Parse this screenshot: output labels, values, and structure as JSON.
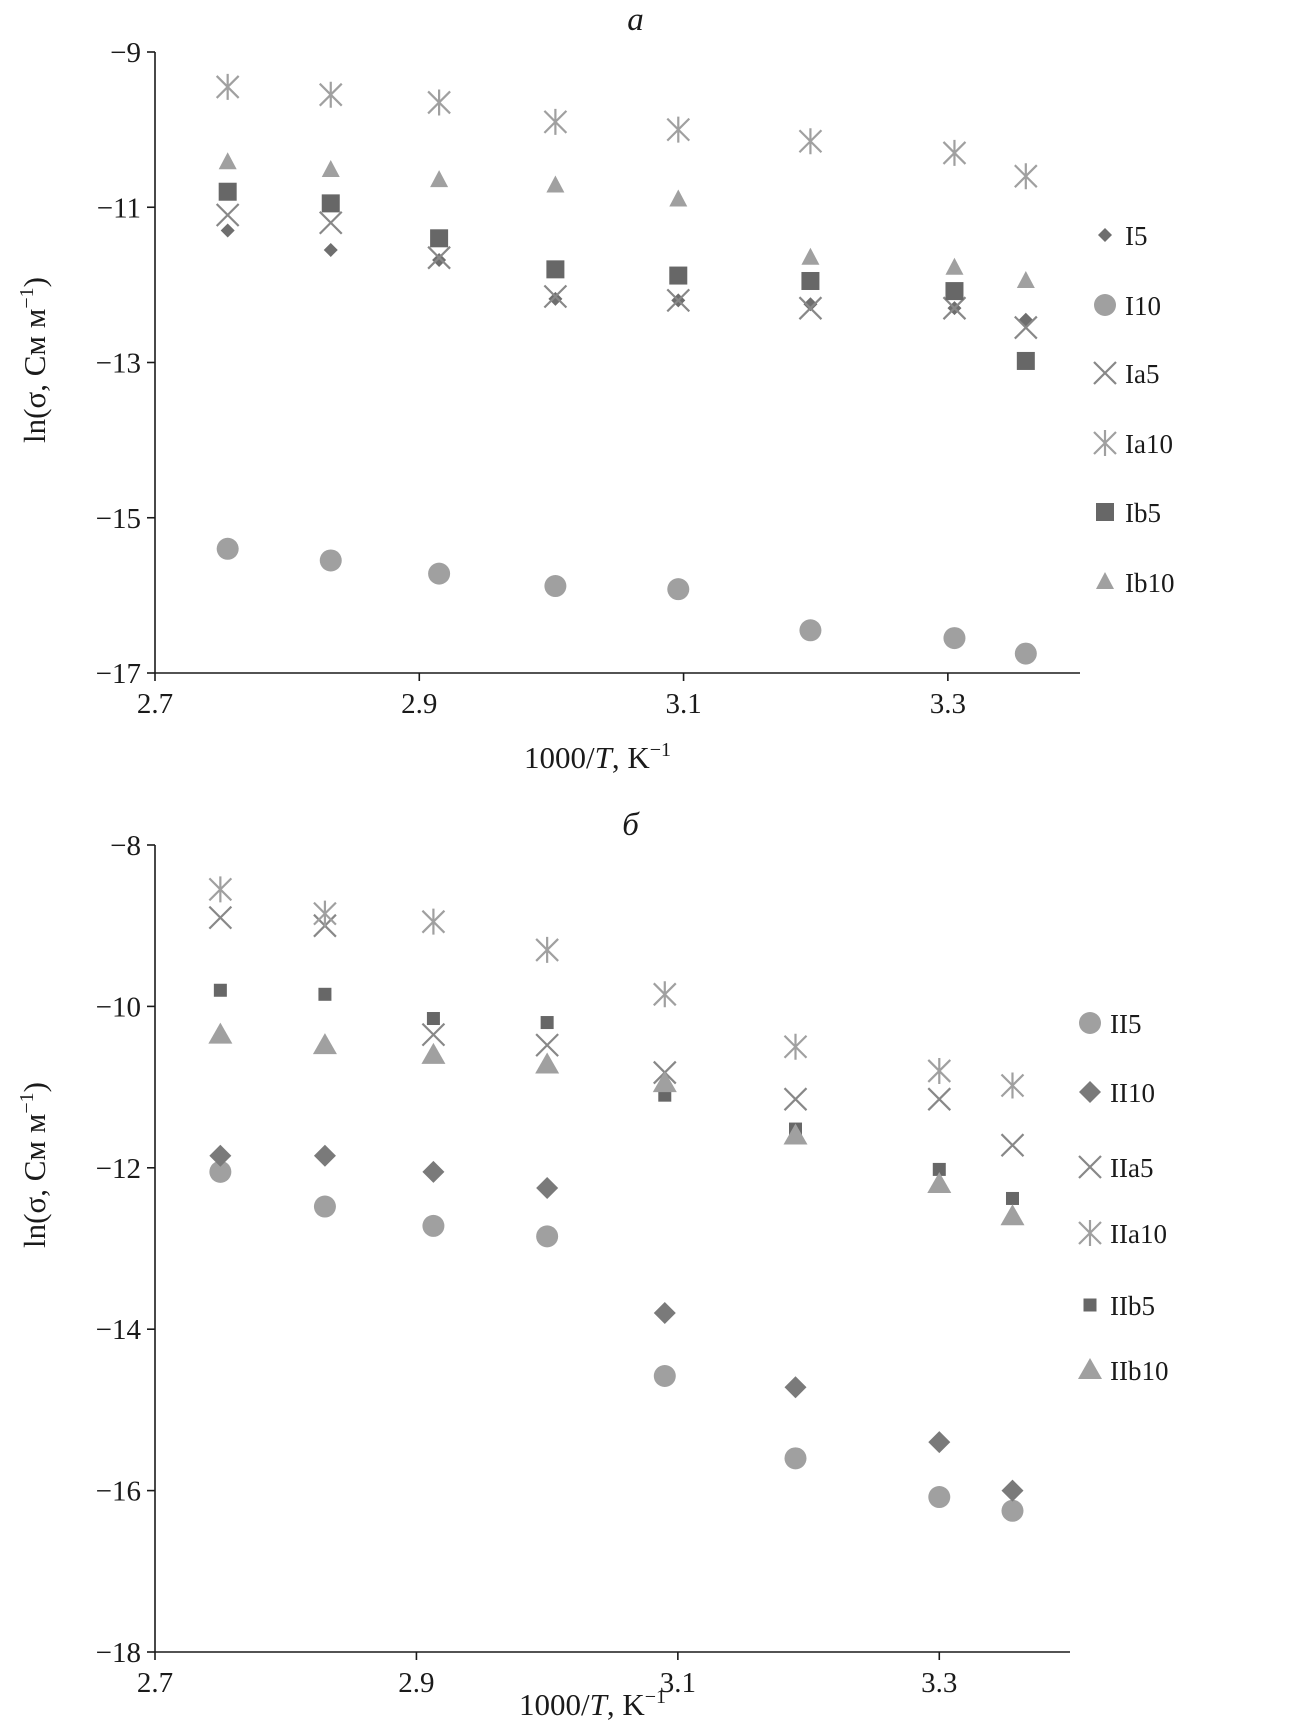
{
  "chart_data": [
    {
      "type": "scatter",
      "panel_label": "a",
      "xlabel_main": "1000/",
      "xlabel_var": "T",
      "xlabel_unit": ", K",
      "xlabel_sup": "−1",
      "ylabel_main": "ln(σ, Cм м",
      "ylabel_sup": "−1",
      "ylabel_end": ")",
      "xlim": [
        2.7,
        3.4
      ],
      "ylim": [
        -17,
        -9
      ],
      "xticks": [
        2.7,
        2.9,
        3.1,
        3.3
      ],
      "xtick_labels": [
        "2.7",
        "2.9",
        "3.1",
        "3.3"
      ],
      "yticks": [
        -9,
        -11,
        -13,
        -15,
        -17
      ],
      "ytick_labels": [
        "−9",
        "−11",
        "−13",
        "−15",
        "−17"
      ],
      "grid": false,
      "legend_position": "right",
      "series": [
        {
          "name": "I5",
          "marker": "diamond-small",
          "color": "#6e6e6e",
          "x": [
            2.755,
            2.833,
            2.915,
            3.003,
            3.096,
            3.196,
            3.305,
            3.359
          ],
          "y": [
            -11.3,
            -11.55,
            -11.68,
            -12.18,
            -12.2,
            -12.25,
            -12.3,
            -12.45
          ]
        },
        {
          "name": "I10",
          "marker": "circle",
          "color": "#a0a0a0",
          "x": [
            2.755,
            2.833,
            2.915,
            3.003,
            3.096,
            3.196,
            3.305,
            3.359
          ],
          "y": [
            -15.4,
            -15.55,
            -15.72,
            -15.88,
            -15.92,
            -16.45,
            -16.55,
            -16.75
          ]
        },
        {
          "name": "Ia5",
          "marker": "x",
          "color": "#888888",
          "x": [
            2.755,
            2.833,
            2.915,
            3.003,
            3.096,
            3.196,
            3.305,
            3.359
          ],
          "y": [
            -11.1,
            -11.2,
            -11.65,
            -12.15,
            -12.2,
            -12.3,
            -12.3,
            -12.55
          ]
        },
        {
          "name": "Ia10",
          "marker": "asterisk",
          "color": "#a0a0a0",
          "x": [
            2.755,
            2.833,
            2.915,
            3.003,
            3.096,
            3.196,
            3.305,
            3.359
          ],
          "y": [
            -9.45,
            -9.55,
            -9.65,
            -9.9,
            -10.0,
            -10.15,
            -10.3,
            -10.6
          ]
        },
        {
          "name": "Ib5",
          "marker": "square",
          "color": "#676767",
          "x": [
            2.755,
            2.833,
            2.915,
            3.003,
            3.096,
            3.196,
            3.305,
            3.359
          ],
          "y": [
            -10.8,
            -10.95,
            -11.4,
            -11.8,
            -11.88,
            -11.95,
            -12.08,
            -12.98
          ]
        },
        {
          "name": "Ib10",
          "marker": "triangle",
          "color": "#a0a0a0",
          "x": [
            2.755,
            2.833,
            2.915,
            3.003,
            3.096,
            3.196,
            3.305,
            3.359
          ],
          "y": [
            -10.42,
            -10.52,
            -10.65,
            -10.72,
            -10.9,
            -11.65,
            -11.78,
            -11.95
          ]
        }
      ]
    },
    {
      "type": "scatter",
      "panel_label": "б",
      "xlabel_main": "1000/",
      "xlabel_var": "T",
      "xlabel_unit": ", K",
      "xlabel_sup": "−1",
      "ylabel_main": "ln(σ, Cм м",
      "ylabel_sup": "−1",
      "ylabel_end": ")",
      "xlim": [
        2.7,
        3.4
      ],
      "ylim": [
        -18,
        -8
      ],
      "xticks": [
        2.7,
        2.9,
        3.1,
        3.3
      ],
      "xtick_labels": [
        "2.7",
        "2.9",
        "3.1",
        "3.3"
      ],
      "yticks": [
        -8,
        -10,
        -12,
        -14,
        -16,
        -18
      ],
      "ytick_labels": [
        "−8",
        "−10",
        "−12",
        "−14",
        "−16",
        "−18"
      ],
      "grid": false,
      "legend_position": "right",
      "series": [
        {
          "name": "II5",
          "marker": "circle",
          "color": "#a0a0a0",
          "x": [
            2.75,
            2.83,
            2.913,
            3.0,
            3.09,
            3.19,
            3.3,
            3.356
          ],
          "y": [
            -12.05,
            -12.48,
            -12.72,
            -12.85,
            -14.58,
            -15.6,
            -16.08,
            -16.25
          ]
        },
        {
          "name": "II10",
          "marker": "diamond",
          "color": "#7a7a7a",
          "x": [
            2.75,
            2.83,
            2.913,
            3.0,
            3.09,
            3.19,
            3.3,
            3.356
          ],
          "y": [
            -11.85,
            -11.85,
            -12.05,
            -12.25,
            -13.8,
            -14.72,
            -15.4,
            -16.0
          ]
        },
        {
          "name": "IIa5",
          "marker": "x",
          "color": "#888888",
          "x": [
            2.75,
            2.83,
            2.913,
            3.0,
            3.09,
            3.19,
            3.3,
            3.356
          ],
          "y": [
            -8.9,
            -9.0,
            -10.35,
            -10.48,
            -10.82,
            -11.15,
            -11.15,
            -11.72
          ]
        },
        {
          "name": "IIa10",
          "marker": "asterisk",
          "color": "#a0a0a0",
          "x": [
            2.75,
            2.83,
            2.913,
            3.0,
            3.09,
            3.19,
            3.3,
            3.356
          ],
          "y": [
            -8.55,
            -8.85,
            -8.95,
            -9.3,
            -9.85,
            -10.5,
            -10.8,
            -10.98
          ]
        },
        {
          "name": "IIb5",
          "marker": "square-small",
          "color": "#676767",
          "x": [
            2.75,
            2.83,
            2.913,
            3.0,
            3.09,
            3.19,
            3.3,
            3.356
          ],
          "y": [
            -9.8,
            -9.85,
            -10.15,
            -10.2,
            -11.1,
            -11.52,
            -12.02,
            -12.38
          ]
        },
        {
          "name": "IIb10",
          "marker": "triangle-large",
          "color": "#a0a0a0",
          "x": [
            2.75,
            2.83,
            2.913,
            3.0,
            3.09,
            3.19,
            3.3,
            3.356
          ],
          "y": [
            -10.35,
            -10.48,
            -10.6,
            -10.72,
            -10.95,
            -11.6,
            -12.2,
            -12.6
          ]
        }
      ]
    }
  ]
}
